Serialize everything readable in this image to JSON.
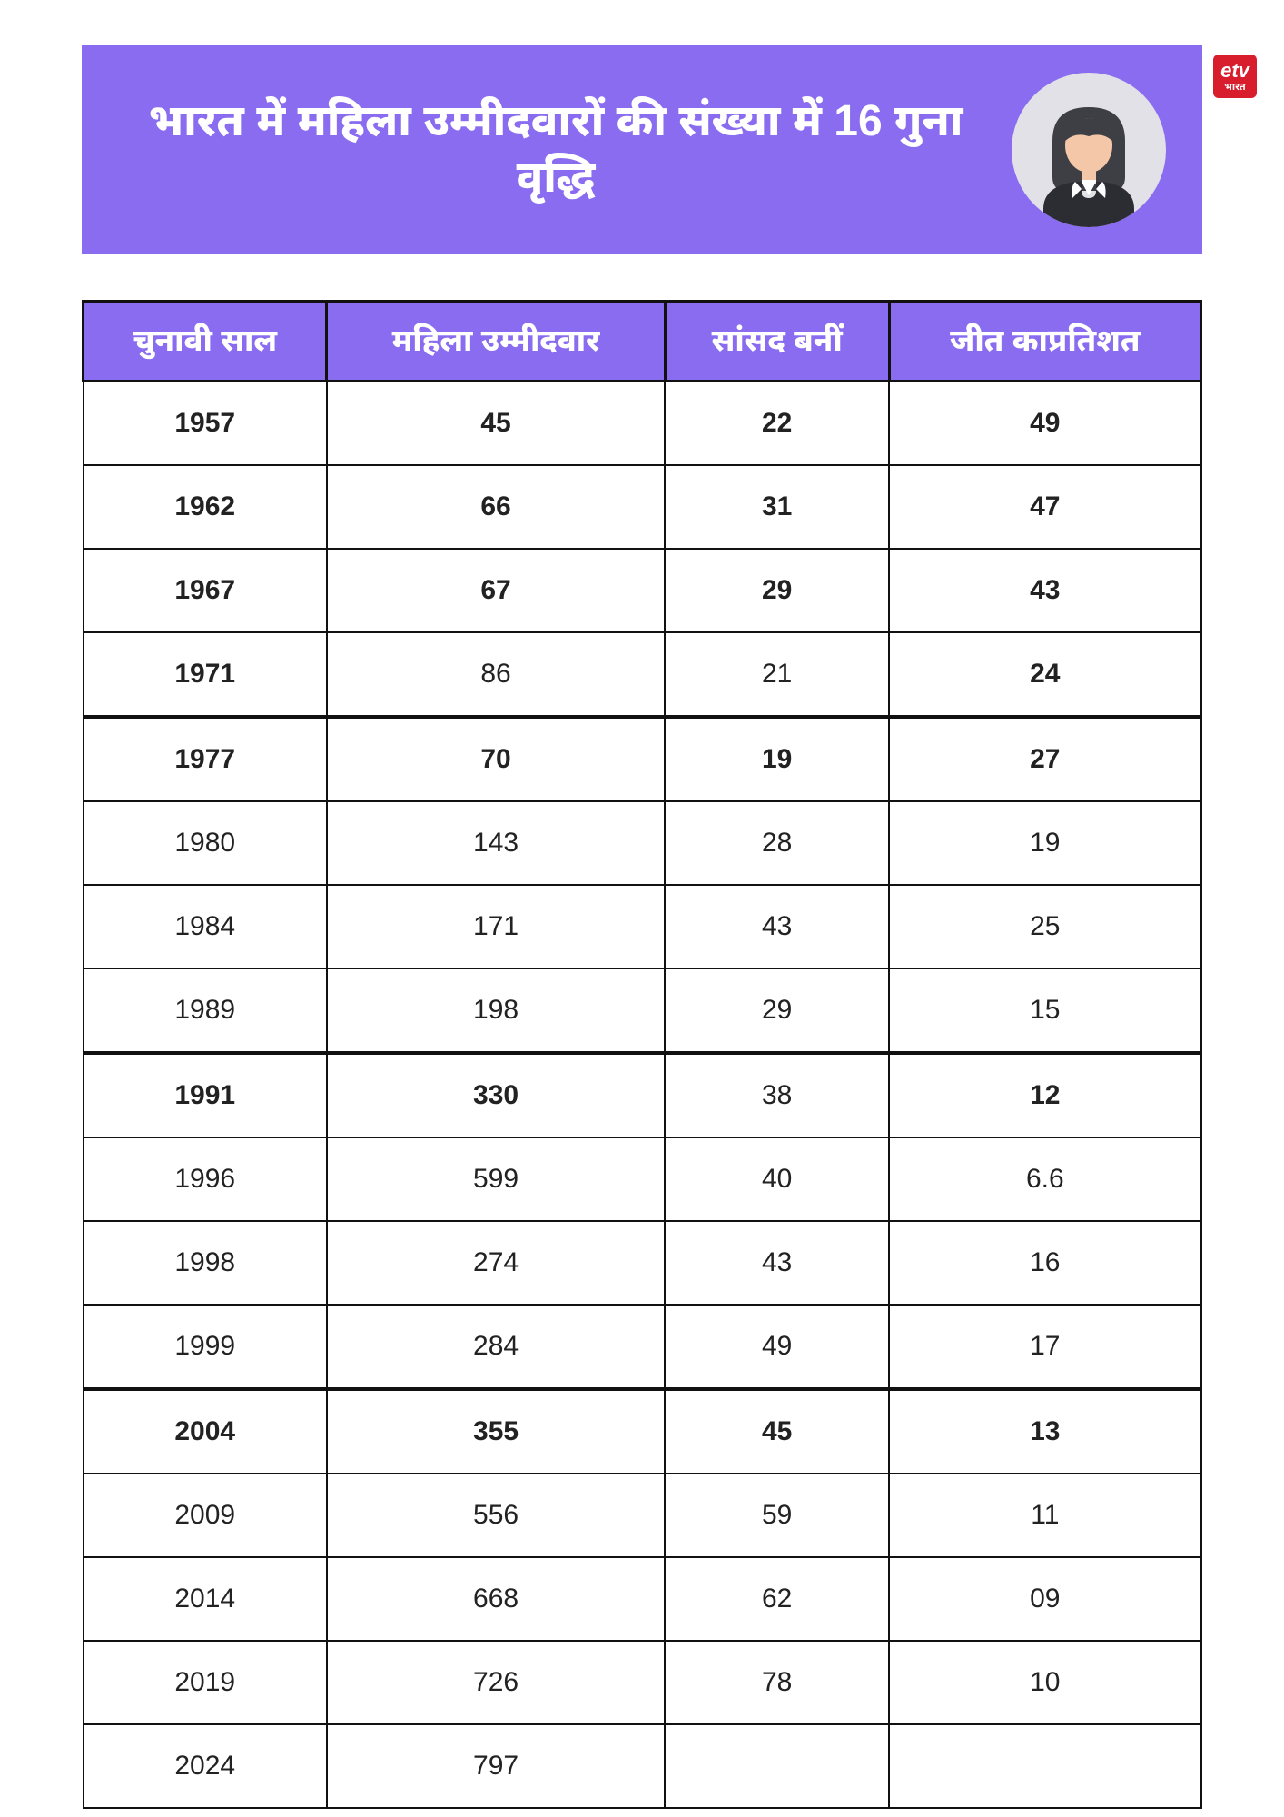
{
  "header": {
    "title": "भारत में महिला उम्मीदवारों की संख्या में 16 गुना वृद्धि",
    "banner_bg": "#8a6cf0",
    "title_color": "#ffffff"
  },
  "logo": {
    "top": "etv",
    "bottom": "भारत"
  },
  "avatar": {
    "circle_bg": "#e2e1e7",
    "hair": "#3d3f45",
    "skin": "#f4c7a8",
    "jacket": "#2b2d33",
    "shirt": "#ffffff"
  },
  "table": {
    "columns": [
      "चुनावी साल",
      "महिला उम्मीदवार",
      "सांसद बनीं",
      "जीत काप्रतिशत"
    ],
    "header_bg": "#8a6cf0",
    "header_color": "#ffffff",
    "border_color": "#111111",
    "cell_bg": "#ffffff",
    "cell_color": "#222222",
    "header_fontsize": 34,
    "cell_fontsize": 30,
    "rows": [
      {
        "cells": [
          "1957",
          "45",
          "22",
          "49"
        ],
        "bold": [
          true,
          true,
          true,
          true
        ],
        "thick_top": false
      },
      {
        "cells": [
          "1962",
          "66",
          "31",
          "47"
        ],
        "bold": [
          true,
          true,
          true,
          true
        ],
        "thick_top": false
      },
      {
        "cells": [
          "1967",
          "67",
          "29",
          "43"
        ],
        "bold": [
          true,
          true,
          true,
          true
        ],
        "thick_top": false
      },
      {
        "cells": [
          "1971",
          "86",
          "21",
          "24"
        ],
        "bold": [
          true,
          false,
          false,
          true
        ],
        "thick_top": false
      },
      {
        "cells": [
          "1977",
          "70",
          "19",
          "27"
        ],
        "bold": [
          true,
          true,
          true,
          true
        ],
        "thick_top": true
      },
      {
        "cells": [
          "1980",
          "143",
          "28",
          "19"
        ],
        "bold": [
          false,
          false,
          false,
          false
        ],
        "thick_top": false
      },
      {
        "cells": [
          "1984",
          "171",
          "43",
          "25"
        ],
        "bold": [
          false,
          false,
          false,
          false
        ],
        "thick_top": false
      },
      {
        "cells": [
          "1989",
          "198",
          "29",
          "15"
        ],
        "bold": [
          false,
          false,
          false,
          false
        ],
        "thick_top": false
      },
      {
        "cells": [
          "1991",
          "330",
          "38",
          "12"
        ],
        "bold": [
          true,
          true,
          false,
          true
        ],
        "thick_top": true
      },
      {
        "cells": [
          "1996",
          "599",
          "40",
          "6.6"
        ],
        "bold": [
          false,
          false,
          false,
          false
        ],
        "thick_top": false
      },
      {
        "cells": [
          "1998",
          "274",
          "43",
          "16"
        ],
        "bold": [
          false,
          false,
          false,
          false
        ],
        "thick_top": false
      },
      {
        "cells": [
          "1999",
          "284",
          "49",
          "17"
        ],
        "bold": [
          false,
          false,
          false,
          false
        ],
        "thick_top": false
      },
      {
        "cells": [
          "2004",
          "355",
          "45",
          "13"
        ],
        "bold": [
          true,
          true,
          true,
          true
        ],
        "thick_top": true
      },
      {
        "cells": [
          "2009",
          "556",
          "59",
          "11"
        ],
        "bold": [
          false,
          false,
          false,
          false
        ],
        "thick_top": false
      },
      {
        "cells": [
          "2014",
          "668",
          "62",
          "09"
        ],
        "bold": [
          false,
          false,
          false,
          false
        ],
        "thick_top": false
      },
      {
        "cells": [
          "2019",
          "726",
          "78",
          "10"
        ],
        "bold": [
          false,
          false,
          false,
          false
        ],
        "thick_top": false
      },
      {
        "cells": [
          "2024",
          "797",
          "",
          ""
        ],
        "bold": [
          false,
          false,
          false,
          false
        ],
        "thick_top": false
      }
    ]
  }
}
